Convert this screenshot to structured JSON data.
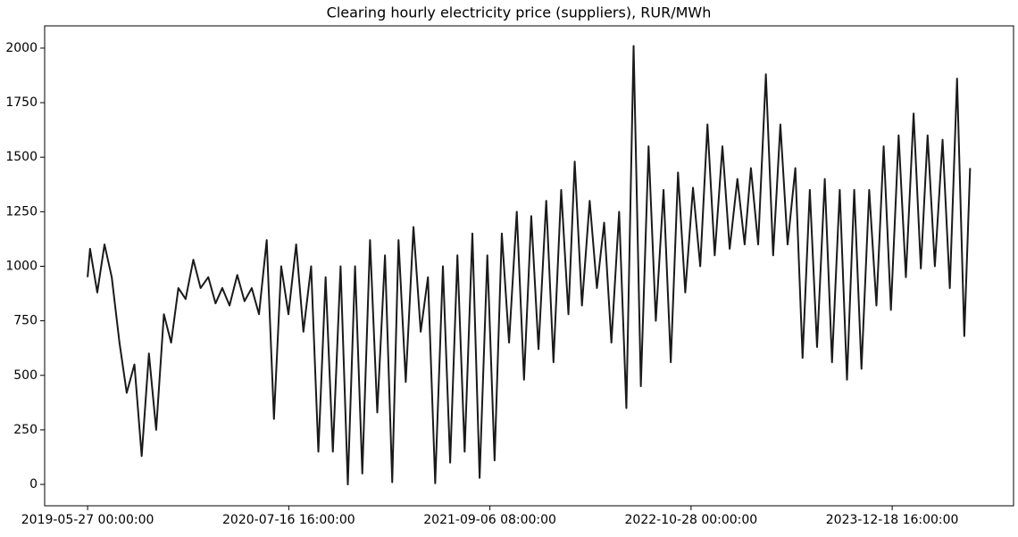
{
  "chart_data": {
    "type": "line",
    "title": "Clearing hourly electricity price (suppliers), RUR/MWh",
    "x": [
      "2019-05-27 00:00:00",
      "2019-06-01 00:00:00",
      "2019-06-16 00:00:00",
      "2019-07-01 00:00:00",
      "2019-07-16 00:00:00",
      "2019-08-01 00:00:00",
      "2019-08-16 00:00:00",
      "2019-09-01 00:00:00",
      "2019-09-16 00:00:00",
      "2019-10-01 00:00:00",
      "2019-10-16 00:00:00",
      "2019-11-01 00:00:00",
      "2019-11-16 00:00:00",
      "2019-12-01 00:00:00",
      "2019-12-16 00:00:00",
      "2020-01-01 00:00:00",
      "2020-01-16 00:00:00",
      "2020-02-01 00:00:00",
      "2020-02-16 00:00:00",
      "2020-03-01 00:00:00",
      "2020-03-16 00:00:00",
      "2020-04-01 00:00:00",
      "2020-04-16 00:00:00",
      "2020-05-01 00:00:00",
      "2020-05-16 00:00:00",
      "2020-06-01 00:00:00",
      "2020-06-16 00:00:00",
      "2020-07-01 00:00:00",
      "2020-07-16 00:00:00",
      "2020-08-01 00:00:00",
      "2020-08-16 00:00:00",
      "2020-09-01 00:00:00",
      "2020-09-16 00:00:00",
      "2020-10-01 00:00:00",
      "2020-10-16 00:00:00",
      "2020-11-01 00:00:00",
      "2020-11-16 00:00:00",
      "2020-12-01 00:00:00",
      "2020-12-16 00:00:00",
      "2021-01-01 00:00:00",
      "2021-01-16 00:00:00",
      "2021-02-01 00:00:00",
      "2021-02-16 00:00:00",
      "2021-03-01 00:00:00",
      "2021-03-16 00:00:00",
      "2021-04-01 00:00:00",
      "2021-04-16 00:00:00",
      "2021-05-01 00:00:00",
      "2021-05-16 00:00:00",
      "2021-06-01 00:00:00",
      "2021-06-16 00:00:00",
      "2021-07-01 00:00:00",
      "2021-07-16 00:00:00",
      "2021-08-01 00:00:00",
      "2021-08-16 00:00:00",
      "2021-09-01 00:00:00",
      "2021-09-16 00:00:00",
      "2021-10-01 00:00:00",
      "2021-10-16 00:00:00",
      "2021-11-01 00:00:00",
      "2021-11-16 00:00:00",
      "2021-12-01 00:00:00",
      "2021-12-16 00:00:00",
      "2022-01-01 00:00:00",
      "2022-01-16 00:00:00",
      "2022-02-01 00:00:00",
      "2022-02-16 00:00:00",
      "2022-03-01 00:00:00",
      "2022-03-16 00:00:00",
      "2022-04-01 00:00:00",
      "2022-04-16 00:00:00",
      "2022-05-01 00:00:00",
      "2022-05-16 00:00:00",
      "2022-06-01 00:00:00",
      "2022-06-16 00:00:00",
      "2022-07-01 00:00:00",
      "2022-07-16 00:00:00",
      "2022-08-01 00:00:00",
      "2022-08-16 00:00:00",
      "2022-09-01 00:00:00",
      "2022-09-16 00:00:00",
      "2022-10-01 00:00:00",
      "2022-10-16 00:00:00",
      "2022-11-01 00:00:00",
      "2022-11-16 00:00:00",
      "2022-12-01 00:00:00",
      "2022-12-16 00:00:00",
      "2023-01-01 00:00:00",
      "2023-01-16 00:00:00",
      "2023-02-01 00:00:00",
      "2023-02-16 00:00:00",
      "2023-03-01 00:00:00",
      "2023-03-16 00:00:00",
      "2023-04-01 00:00:00",
      "2023-04-16 00:00:00",
      "2023-05-01 00:00:00",
      "2023-05-16 00:00:00",
      "2023-06-01 00:00:00",
      "2023-06-16 00:00:00",
      "2023-07-01 00:00:00",
      "2023-07-16 00:00:00",
      "2023-08-01 00:00:00",
      "2023-08-16 00:00:00",
      "2023-09-01 00:00:00",
      "2023-09-16 00:00:00",
      "2023-10-01 00:00:00",
      "2023-10-16 00:00:00",
      "2023-11-01 00:00:00",
      "2023-11-16 00:00:00",
      "2023-12-01 00:00:00",
      "2023-12-16 00:00:00",
      "2024-01-01 00:00:00",
      "2024-01-16 00:00:00",
      "2024-02-01 00:00:00",
      "2024-02-16 00:00:00",
      "2024-03-01 00:00:00",
      "2024-03-16 00:00:00",
      "2024-04-01 00:00:00",
      "2024-04-16 00:00:00",
      "2024-05-01 00:00:00",
      "2024-05-16 00:00:00",
      "2024-05-28 00:00:00"
    ],
    "values": [
      950,
      1080,
      880,
      1100,
      950,
      650,
      420,
      550,
      130,
      600,
      250,
      780,
      650,
      900,
      850,
      1030,
      900,
      950,
      830,
      900,
      820,
      960,
      840,
      900,
      780,
      1120,
      300,
      1000,
      780,
      1100,
      700,
      1000,
      150,
      950,
      150,
      1000,
      0,
      1000,
      50,
      1120,
      330,
      1050,
      10,
      1120,
      470,
      1180,
      700,
      950,
      5,
      1000,
      100,
      1050,
      150,
      1150,
      30,
      1050,
      110,
      1150,
      650,
      1250,
      480,
      1230,
      620,
      1300,
      560,
      1350,
      780,
      1480,
      820,
      1300,
      900,
      1200,
      650,
      1250,
      350,
      2010,
      450,
      1550,
      750,
      1350,
      560,
      1430,
      880,
      1360,
      1000,
      1650,
      1050,
      1550,
      1080,
      1400,
      1100,
      1450,
      1100,
      1880,
      1050,
      1650,
      1100,
      1450,
      580,
      1350,
      630,
      1400,
      560,
      1350,
      480,
      1350,
      530,
      1350,
      820,
      1550,
      800,
      1600,
      950,
      1700,
      990,
      1600,
      1000,
      1580,
      900,
      1860,
      680,
      1450
    ],
    "color": "#1a1a1a",
    "xlim": [
      "2019-02-27 00:00:00",
      "2024-08-26 00:00:00"
    ],
    "xticks": [
      "2019-05-27 00:00:00",
      "2020-07-16 16:00:00",
      "2021-09-06 08:00:00",
      "2022-10-28 00:00:00",
      "2023-12-18 16:00:00"
    ],
    "ylim": [
      -98,
      2102
    ],
    "yticks": [
      0,
      250,
      500,
      750,
      1000,
      1250,
      1500,
      1750,
      2000
    ]
  }
}
